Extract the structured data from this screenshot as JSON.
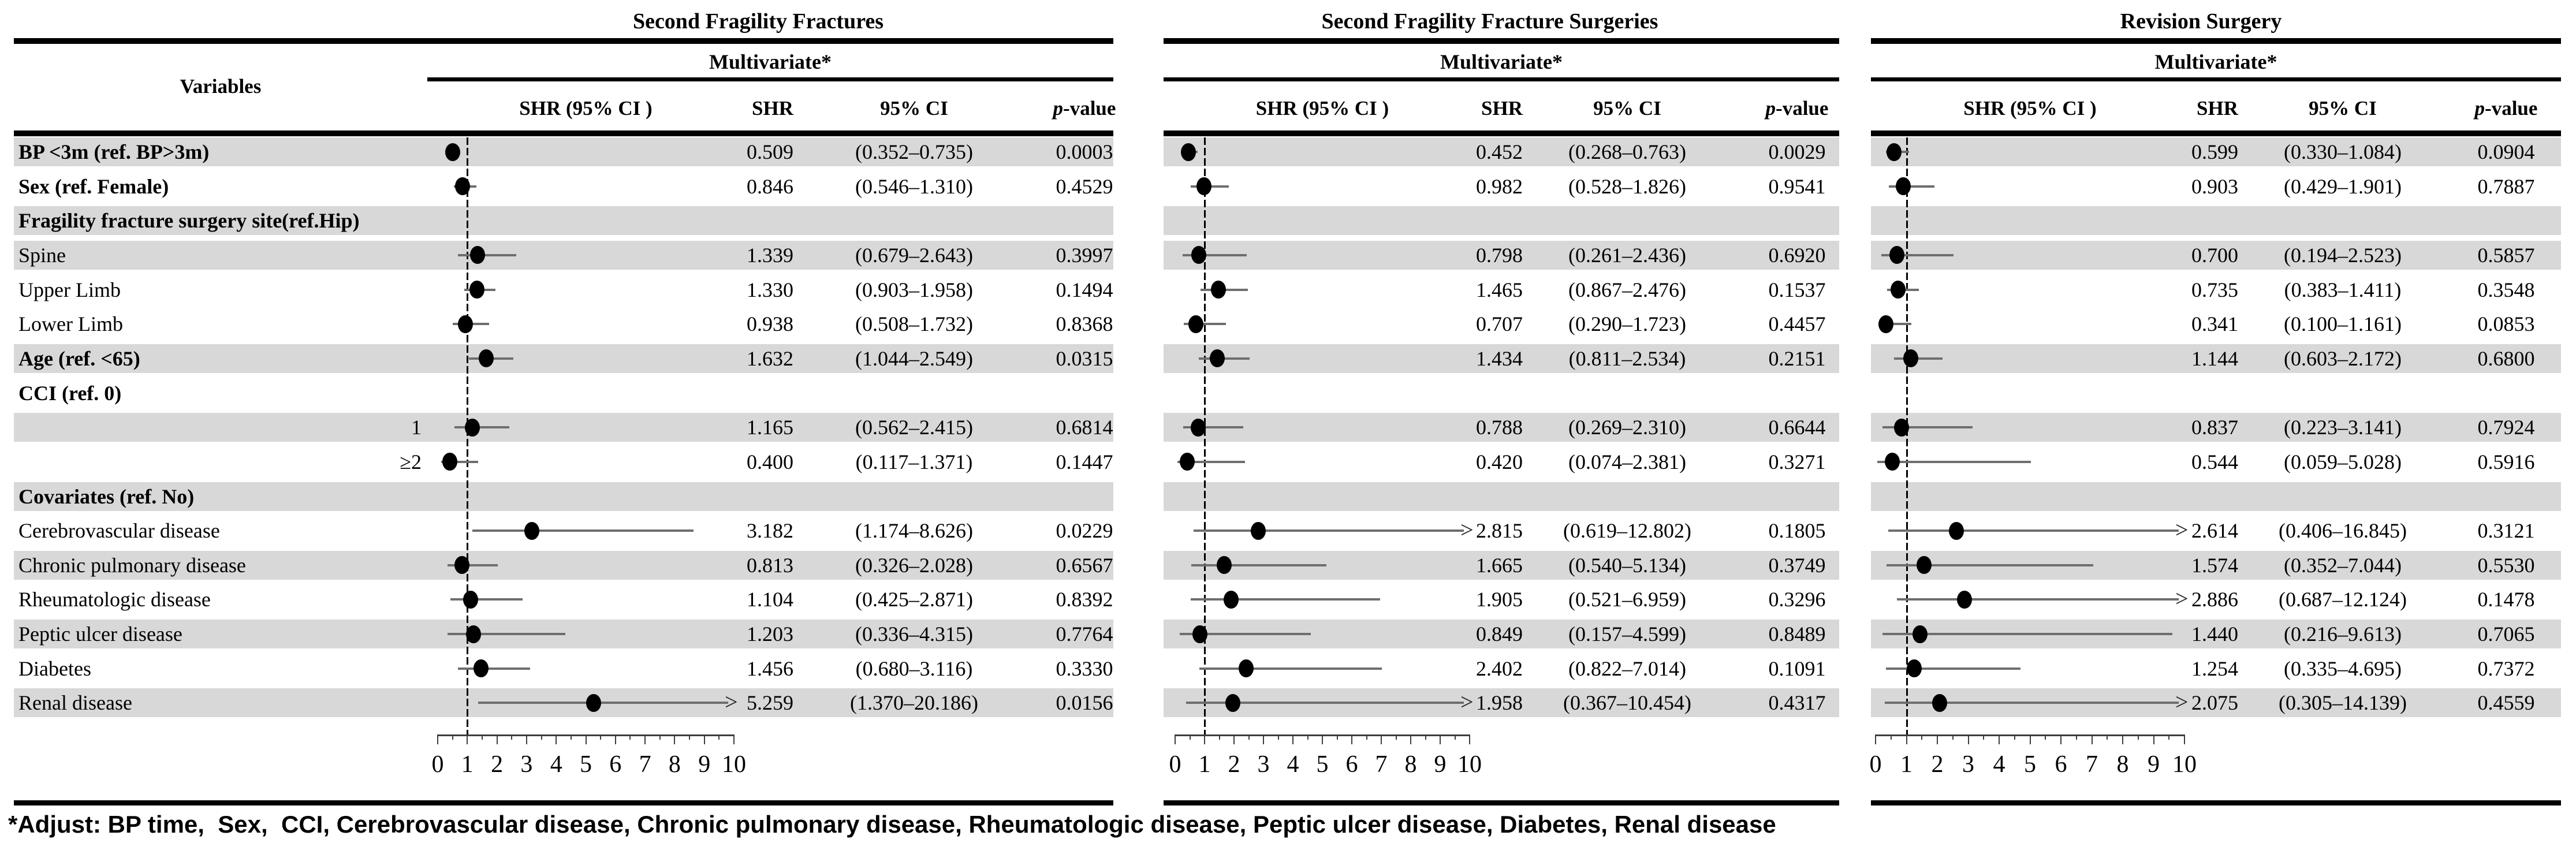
{
  "figure": {
    "variables_header": "Variables",
    "subheader": "Multivariate*",
    "col_headers": {
      "plot": "SHR (95% CI )",
      "shr": "SHR",
      "ci": "95% CI",
      "p": "p-value"
    },
    "footnote": "*Adjust: BP time,  Sex,  CCI, Cerebrovascular disease, Chronic pulmonary disease, Rheumatologic disease, Peptic ulcer disease, Diabetes, Renal disease"
  },
  "chart_data": {
    "type": "forest",
    "title": "",
    "xlabel": "SHR",
    "axis": {
      "min": 0,
      "max": 10,
      "major_ticks": [
        0,
        1,
        2,
        3,
        4,
        5,
        6,
        7,
        8,
        9,
        10
      ],
      "minor_step": 0.5,
      "reference_line": 1,
      "grid": false
    },
    "rows": [
      {
        "label": "BP <3m (ref. BP>3m)",
        "bold": true,
        "shaded": true,
        "align": "left"
      },
      {
        "label": "Sex (ref. Female)",
        "bold": true,
        "shaded": false,
        "align": "left"
      },
      {
        "label": "Fragility fracture surgery site(ref.Hip)",
        "bold": true,
        "shaded": true,
        "align": "left"
      },
      {
        "label": "Spine",
        "bold": false,
        "shaded": true,
        "align": "left"
      },
      {
        "label": "Upper Limb",
        "bold": false,
        "shaded": false,
        "align": "left"
      },
      {
        "label": "Lower Limb",
        "bold": false,
        "shaded": false,
        "align": "left"
      },
      {
        "label": "Age (ref. <65)",
        "bold": true,
        "shaded": true,
        "align": "left"
      },
      {
        "label": "CCI (ref. 0)",
        "bold": true,
        "shaded": false,
        "align": "left"
      },
      {
        "label": "1",
        "bold": false,
        "shaded": true,
        "align": "right"
      },
      {
        "label": "≥2",
        "bold": false,
        "shaded": false,
        "align": "right"
      },
      {
        "label": "Covariates (ref. No)",
        "bold": true,
        "shaded": true,
        "align": "left"
      },
      {
        "label": "Cerebrovascular disease",
        "bold": false,
        "shaded": false,
        "align": "left"
      },
      {
        "label": "Chronic pulmonary disease",
        "bold": false,
        "shaded": true,
        "align": "left"
      },
      {
        "label": "Rheumatologic disease",
        "bold": false,
        "shaded": false,
        "align": "left"
      },
      {
        "label": "Peptic ulcer disease",
        "bold": false,
        "shaded": true,
        "align": "left"
      },
      {
        "label": "Diabetes",
        "bold": false,
        "shaded": false,
        "align": "left"
      },
      {
        "label": "Renal disease",
        "bold": false,
        "shaded": true,
        "align": "left"
      }
    ],
    "panels": [
      {
        "title": "Second Fragility Fractures",
        "estimates": [
          {
            "shr": 0.509,
            "lo": 0.352,
            "hi": 0.735,
            "arrow": false,
            "shr_text": "0.509",
            "ci_text": "(0.352–0.735)",
            "p_text": "0.0003"
          },
          {
            "shr": 0.846,
            "lo": 0.546,
            "hi": 1.31,
            "arrow": false,
            "shr_text": "0.846",
            "ci_text": "(0.546–1.310)",
            "p_text": "0.4529"
          },
          null,
          {
            "shr": 1.339,
            "lo": 0.679,
            "hi": 2.643,
            "arrow": false,
            "shr_text": "1.339",
            "ci_text": "(0.679–2.643)",
            "p_text": "0.3997"
          },
          {
            "shr": 1.33,
            "lo": 0.903,
            "hi": 1.958,
            "arrow": false,
            "shr_text": "1.330",
            "ci_text": "(0.903–1.958)",
            "p_text": "0.1494"
          },
          {
            "shr": 0.938,
            "lo": 0.508,
            "hi": 1.732,
            "arrow": false,
            "shr_text": "0.938",
            "ci_text": "(0.508–1.732)",
            "p_text": "0.8368"
          },
          {
            "shr": 1.632,
            "lo": 1.044,
            "hi": 2.549,
            "arrow": false,
            "shr_text": "1.632",
            "ci_text": "(1.044–2.549)",
            "p_text": "0.0315"
          },
          null,
          {
            "shr": 1.165,
            "lo": 0.562,
            "hi": 2.415,
            "arrow": false,
            "shr_text": "1.165",
            "ci_text": "(0.562–2.415)",
            "p_text": "0.6814"
          },
          {
            "shr": 0.4,
            "lo": 0.117,
            "hi": 1.371,
            "arrow": false,
            "shr_text": "0.400",
            "ci_text": "(0.117–1.371)",
            "p_text": "0.1447"
          },
          null,
          {
            "shr": 3.182,
            "lo": 1.174,
            "hi": 8.626,
            "arrow": false,
            "shr_text": "3.182",
            "ci_text": "(1.174–8.626)",
            "p_text": "0.0229"
          },
          {
            "shr": 0.813,
            "lo": 0.326,
            "hi": 2.028,
            "arrow": false,
            "shr_text": "0.813",
            "ci_text": "(0.326–2.028)",
            "p_text": "0.6567"
          },
          {
            "shr": 1.104,
            "lo": 0.425,
            "hi": 2.871,
            "arrow": false,
            "shr_text": "1.104",
            "ci_text": "(0.425–2.871)",
            "p_text": "0.8392"
          },
          {
            "shr": 1.203,
            "lo": 0.336,
            "hi": 4.315,
            "arrow": false,
            "shr_text": "1.203",
            "ci_text": "(0.336–4.315)",
            "p_text": "0.7764"
          },
          {
            "shr": 1.456,
            "lo": 0.68,
            "hi": 3.116,
            "arrow": false,
            "shr_text": "1.456",
            "ci_text": "(0.680–3.116)",
            "p_text": "0.3330"
          },
          {
            "shr": 5.259,
            "lo": 1.37,
            "hi": 20.186,
            "arrow": true,
            "shr_text": "5.259",
            "ci_text": "(1.370–20.186)",
            "p_text": "0.0156"
          }
        ]
      },
      {
        "title": "Second Fragility Fracture Surgeries",
        "estimates": [
          {
            "shr": 0.452,
            "lo": 0.268,
            "hi": 0.763,
            "arrow": false,
            "shr_text": "0.452",
            "ci_text": "(0.268–0.763)",
            "p_text": "0.0029"
          },
          {
            "shr": 0.982,
            "lo": 0.528,
            "hi": 1.826,
            "arrow": false,
            "shr_text": "0.982",
            "ci_text": "(0.528–1.826)",
            "p_text": "0.9541"
          },
          null,
          {
            "shr": 0.798,
            "lo": 0.261,
            "hi": 2.436,
            "arrow": false,
            "shr_text": "0.798",
            "ci_text": "(0.261–2.436)",
            "p_text": "0.6920"
          },
          {
            "shr": 1.465,
            "lo": 0.867,
            "hi": 2.476,
            "arrow": false,
            "shr_text": "1.465",
            "ci_text": "(0.867–2.476)",
            "p_text": "0.1537"
          },
          {
            "shr": 0.707,
            "lo": 0.29,
            "hi": 1.723,
            "arrow": false,
            "shr_text": "0.707",
            "ci_text": "(0.290–1.723)",
            "p_text": "0.4457"
          },
          {
            "shr": 1.434,
            "lo": 0.811,
            "hi": 2.534,
            "arrow": false,
            "shr_text": "1.434",
            "ci_text": "(0.811–2.534)",
            "p_text": "0.2151"
          },
          null,
          {
            "shr": 0.788,
            "lo": 0.269,
            "hi": 2.31,
            "arrow": false,
            "shr_text": "0.788",
            "ci_text": "(0.269–2.310)",
            "p_text": "0.6644"
          },
          {
            "shr": 0.42,
            "lo": 0.074,
            "hi": 2.381,
            "arrow": false,
            "shr_text": "0.420",
            "ci_text": "(0.074–2.381)",
            "p_text": "0.3271"
          },
          null,
          {
            "shr": 2.815,
            "lo": 0.619,
            "hi": 12.802,
            "arrow": true,
            "shr_text": "2.815",
            "ci_text": "(0.619–12.802)",
            "p_text": "0.1805"
          },
          {
            "shr": 1.665,
            "lo": 0.54,
            "hi": 5.134,
            "arrow": false,
            "shr_text": "1.665",
            "ci_text": "(0.540–5.134)",
            "p_text": "0.3749"
          },
          {
            "shr": 1.905,
            "lo": 0.521,
            "hi": 6.959,
            "arrow": false,
            "shr_text": "1.905",
            "ci_text": "(0.521–6.959)",
            "p_text": "0.3296"
          },
          {
            "shr": 0.849,
            "lo": 0.157,
            "hi": 4.599,
            "arrow": false,
            "shr_text": "0.849",
            "ci_text": "(0.157–4.599)",
            "p_text": "0.8489"
          },
          {
            "shr": 2.402,
            "lo": 0.822,
            "hi": 7.014,
            "arrow": false,
            "shr_text": "2.402",
            "ci_text": "(0.822–7.014)",
            "p_text": "0.1091"
          },
          {
            "shr": 1.958,
            "lo": 0.367,
            "hi": 10.454,
            "arrow": true,
            "shr_text": "1.958",
            "ci_text": "(0.367–10.454)",
            "p_text": "0.4317"
          }
        ]
      },
      {
        "title": "Revision Surgery",
        "estimates": [
          {
            "shr": 0.599,
            "lo": 0.33,
            "hi": 1.084,
            "arrow": false,
            "shr_text": "0.599",
            "ci_text": "(0.330–1.084)",
            "p_text": "0.0904"
          },
          {
            "shr": 0.903,
            "lo": 0.429,
            "hi": 1.901,
            "arrow": false,
            "shr_text": "0.903",
            "ci_text": "(0.429–1.901)",
            "p_text": "0.7887"
          },
          null,
          {
            "shr": 0.7,
            "lo": 0.194,
            "hi": 2.523,
            "arrow": false,
            "shr_text": "0.700",
            "ci_text": "(0.194–2.523)",
            "p_text": "0.5857"
          },
          {
            "shr": 0.735,
            "lo": 0.383,
            "hi": 1.411,
            "arrow": false,
            "shr_text": "0.735",
            "ci_text": "(0.383–1.411)",
            "p_text": "0.3548"
          },
          {
            "shr": 0.341,
            "lo": 0.1,
            "hi": 1.161,
            "arrow": false,
            "shr_text": "0.341",
            "ci_text": "(0.100–1.161)",
            "p_text": "0.0853"
          },
          {
            "shr": 1.144,
            "lo": 0.603,
            "hi": 2.172,
            "arrow": false,
            "shr_text": "1.144",
            "ci_text": "(0.603–2.172)",
            "p_text": "0.6800"
          },
          null,
          {
            "shr": 0.837,
            "lo": 0.223,
            "hi": 3.141,
            "arrow": false,
            "shr_text": "0.837",
            "ci_text": "(0.223–3.141)",
            "p_text": "0.7924"
          },
          {
            "shr": 0.544,
            "lo": 0.059,
            "hi": 5.028,
            "arrow": false,
            "shr_text": "0.544",
            "ci_text": "(0.059–5.028)",
            "p_text": "0.5916"
          },
          null,
          {
            "shr": 2.614,
            "lo": 0.406,
            "hi": 16.845,
            "arrow": true,
            "shr_text": "2.614",
            "ci_text": "(0.406–16.845)",
            "p_text": "0.3121"
          },
          {
            "shr": 1.574,
            "lo": 0.352,
            "hi": 7.044,
            "arrow": false,
            "shr_text": "1.574",
            "ci_text": "(0.352–7.044)",
            "p_text": "0.5530"
          },
          {
            "shr": 2.886,
            "lo": 0.687,
            "hi": 12.124,
            "arrow": true,
            "shr_text": "2.886",
            "ci_text": "(0.687–12.124)",
            "p_text": "0.1478"
          },
          {
            "shr": 1.44,
            "lo": 0.216,
            "hi": 9.613,
            "arrow": false,
            "shr_text": "1.440",
            "ci_text": "(0.216–9.613)",
            "p_text": "0.7065"
          },
          {
            "shr": 1.254,
            "lo": 0.335,
            "hi": 4.695,
            "arrow": false,
            "shr_text": "1.254",
            "ci_text": "(0.335–4.695)",
            "p_text": "0.7372"
          },
          {
            "shr": 2.075,
            "lo": 0.305,
            "hi": 14.139,
            "arrow": true,
            "shr_text": "2.075",
            "ci_text": "(0.305–14.139)",
            "p_text": "0.4559"
          }
        ]
      }
    ]
  }
}
